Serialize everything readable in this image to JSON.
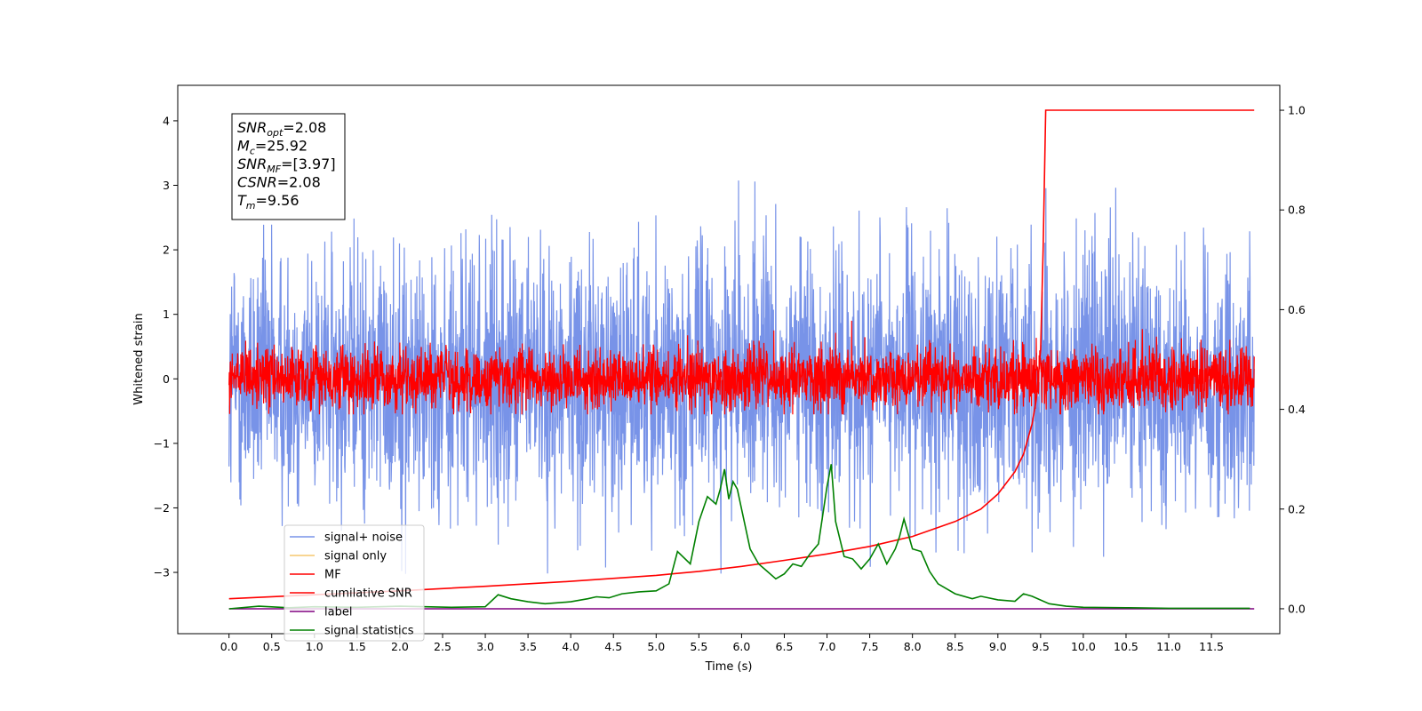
{
  "chart_data": {
    "type": "line",
    "title": "",
    "xlabel": "Time (s)",
    "ylabel": "Whitened strain",
    "xlim": [
      -0.6,
      12.3
    ],
    "ylim": [
      -3.95,
      4.55
    ],
    "y2lim": [
      -0.05,
      1.05
    ],
    "x_ticks": [
      "0.0",
      "0.5",
      "1.0",
      "1.5",
      "2.0",
      "2.5",
      "3.0",
      "3.5",
      "4.0",
      "4.5",
      "5.0",
      "5.5",
      "6.0",
      "6.5",
      "7.0",
      "7.5",
      "8.0",
      "8.5",
      "9.0",
      "9.5",
      "10.0",
      "10.5",
      "11.0",
      "11.5"
    ],
    "y_ticks": [
      "4",
      "3",
      "2",
      "1",
      "0",
      "−1",
      "−2",
      "−3"
    ],
    "y2_ticks": [
      "1.0",
      "0.8",
      "0.6",
      "0.4",
      "0.2",
      "0.0"
    ],
    "grid": false,
    "legend_position": "lower-left",
    "legend": [
      {
        "name": "signal+ noise",
        "color": "#7893e8"
      },
      {
        "name": "signal only",
        "color": "#f5c76e"
      },
      {
        "name": "MF",
        "color": "#ff0000"
      },
      {
        "name": "cumilative SNR",
        "color": "#ff0000"
      },
      {
        "name": "label",
        "color": "#800080"
      },
      {
        "name": "signal statistics",
        "color": "#008000"
      }
    ],
    "series": [
      {
        "name": "signal+ noise",
        "axis": "left",
        "color": "#7893e8",
        "x_range": [
          0,
          12
        ],
        "std": 1.0,
        "range": [
          -3.55,
          4.18
        ]
      },
      {
        "name": "MF",
        "axis": "left",
        "color": "#ff0000",
        "x_range": [
          0,
          12
        ],
        "std": 0.24,
        "range": [
          -0.55,
          0.9
        ]
      },
      {
        "name": "cumilative SNR",
        "axis": "right",
        "color": "#ff0000",
        "x": [
          0,
          1,
          2,
          3,
          4,
          5,
          5.5,
          6,
          6.5,
          7,
          7.5,
          8,
          8.5,
          8.8,
          9,
          9.2,
          9.3,
          9.4,
          9.45,
          9.5,
          9.53,
          9.56,
          10,
          11,
          12
        ],
        "y": [
          0.02,
          0.028,
          0.036,
          0.045,
          0.055,
          0.067,
          0.075,
          0.085,
          0.097,
          0.11,
          0.125,
          0.145,
          0.175,
          0.2,
          0.23,
          0.275,
          0.31,
          0.37,
          0.42,
          0.52,
          0.72,
          1.0,
          1.0,
          1.0,
          1.0
        ]
      },
      {
        "name": "label",
        "axis": "right",
        "color": "#800080",
        "x": [
          0,
          12
        ],
        "y": [
          0,
          0
        ]
      },
      {
        "name": "signal statistics",
        "axis": "right",
        "color": "#008000",
        "x": [
          0,
          0.35,
          0.7,
          1.0,
          1.5,
          2.0,
          2.3,
          2.6,
          3.0,
          3.15,
          3.3,
          3.5,
          3.7,
          4.0,
          4.2,
          4.3,
          4.45,
          4.6,
          4.8,
          5.0,
          5.15,
          5.25,
          5.4,
          5.5,
          5.6,
          5.7,
          5.75,
          5.8,
          5.85,
          5.9,
          5.95,
          6.0,
          6.1,
          6.2,
          6.3,
          6.4,
          6.5,
          6.6,
          6.7,
          6.8,
          6.9,
          7.0,
          7.05,
          7.1,
          7.2,
          7.3,
          7.4,
          7.5,
          7.6,
          7.7,
          7.8,
          7.85,
          7.9,
          8.0,
          8.1,
          8.2,
          8.3,
          8.5,
          8.7,
          8.8,
          9.0,
          9.2,
          9.3,
          9.4,
          9.6,
          9.8,
          10.0,
          10.5,
          11.0,
          11.5,
          11.95
        ],
        "y": [
          0,
          0.005,
          0.002,
          0.004,
          0.003,
          0.005,
          0.004,
          0.003,
          0.004,
          0.028,
          0.02,
          0.014,
          0.01,
          0.014,
          0.02,
          0.024,
          0.022,
          0.03,
          0.034,
          0.036,
          0.05,
          0.115,
          0.09,
          0.175,
          0.225,
          0.21,
          0.24,
          0.28,
          0.22,
          0.255,
          0.24,
          0.2,
          0.12,
          0.09,
          0.075,
          0.06,
          0.07,
          0.09,
          0.085,
          0.11,
          0.13,
          0.245,
          0.29,
          0.175,
          0.105,
          0.1,
          0.08,
          0.1,
          0.13,
          0.09,
          0.12,
          0.145,
          0.18,
          0.12,
          0.115,
          0.075,
          0.05,
          0.03,
          0.02,
          0.025,
          0.018,
          0.015,
          0.03,
          0.025,
          0.01,
          0.005,
          0.003,
          0.002,
          0.001,
          0.001,
          0.001
        ]
      }
    ],
    "annotations": [
      {
        "base": "SNR",
        "sub": "opt",
        "value": "=2.08"
      },
      {
        "base": "M",
        "sub": "c",
        "value": "=25.92"
      },
      {
        "base": "SNR",
        "sub": "MF",
        "value": "=[3.97]"
      },
      {
        "base": "CSNR",
        "sub": "",
        "value": "=2.08"
      },
      {
        "base": "T",
        "sub": "m",
        "value": "=9.56"
      }
    ]
  }
}
